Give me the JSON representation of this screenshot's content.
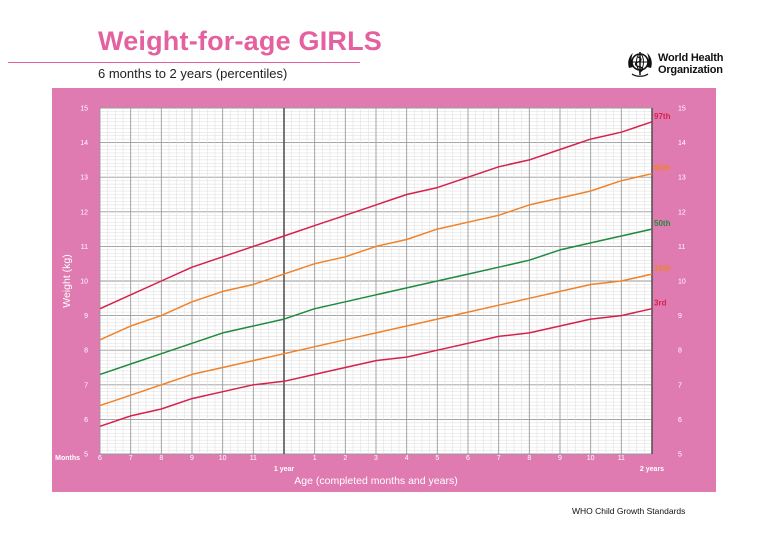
{
  "header": {
    "title": "Weight-for-age GIRLS",
    "subtitle": "6 months to 2 years (percentiles)",
    "org_line1": "World Health",
    "org_line2": "Organization"
  },
  "footer": {
    "text": "WHO Child Growth Standards"
  },
  "colors": {
    "brand_pink": "#e4609f",
    "panel_pink": "#e07bb2",
    "p3_p97": "#d5214b",
    "p15_p85": "#f0822a",
    "p50": "#1f8a3e"
  },
  "chart_data": {
    "type": "line",
    "x_start_label": "Months",
    "x_tick_labels": [
      "6",
      "7",
      "8",
      "9",
      "10",
      "11",
      "1 year",
      "1",
      "2",
      "3",
      "4",
      "5",
      "6",
      "7",
      "8",
      "9",
      "10",
      "11",
      "2 years"
    ],
    "x": [
      6,
      7,
      8,
      9,
      10,
      11,
      12,
      13,
      14,
      15,
      16,
      17,
      18,
      19,
      20,
      21,
      22,
      23,
      24
    ],
    "xlabel": "Age (completed months and years)",
    "ylabel": "Weight (kg)",
    "ylim": [
      5,
      15
    ],
    "y_ticks": [
      5,
      6,
      7,
      8,
      9,
      10,
      11,
      12,
      13,
      14,
      15
    ],
    "xlim": [
      6,
      24
    ],
    "grid": true,
    "series": [
      {
        "name": "97th",
        "values": [
          9.2,
          9.6,
          10.0,
          10.4,
          10.7,
          11.0,
          11.3,
          11.6,
          11.9,
          12.2,
          12.5,
          12.7,
          13.0,
          13.3,
          13.5,
          13.8,
          14.1,
          14.3,
          14.6
        ]
      },
      {
        "name": "85th",
        "values": [
          8.3,
          8.7,
          9.0,
          9.4,
          9.7,
          9.9,
          10.2,
          10.5,
          10.7,
          11.0,
          11.2,
          11.5,
          11.7,
          11.9,
          12.2,
          12.4,
          12.6,
          12.9,
          13.1
        ]
      },
      {
        "name": "50th",
        "values": [
          7.3,
          7.6,
          7.9,
          8.2,
          8.5,
          8.7,
          8.9,
          9.2,
          9.4,
          9.6,
          9.8,
          10.0,
          10.2,
          10.4,
          10.6,
          10.9,
          11.1,
          11.3,
          11.5
        ]
      },
      {
        "name": "15th",
        "values": [
          6.4,
          6.7,
          7.0,
          7.3,
          7.5,
          7.7,
          7.9,
          8.1,
          8.3,
          8.5,
          8.7,
          8.9,
          9.1,
          9.3,
          9.5,
          9.7,
          9.9,
          10.0,
          10.2
        ]
      },
      {
        "name": "3rd",
        "values": [
          5.8,
          6.1,
          6.3,
          6.6,
          6.8,
          7.0,
          7.1,
          7.3,
          7.5,
          7.7,
          7.8,
          8.0,
          8.2,
          8.4,
          8.5,
          8.7,
          8.9,
          9.0,
          9.2
        ]
      }
    ]
  }
}
